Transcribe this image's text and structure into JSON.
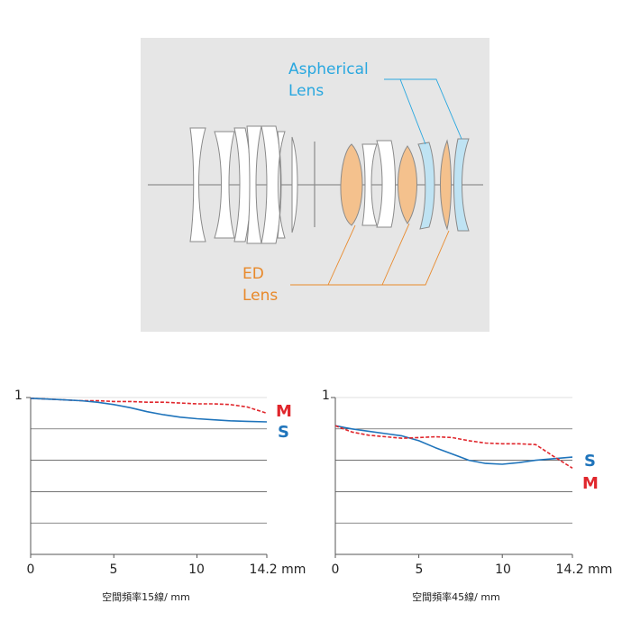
{
  "diagram": {
    "aspherical_label": [
      "Aspherical",
      "Lens"
    ],
    "ed_label": [
      "ED",
      "Lens"
    ],
    "colors": {
      "aspherical": "#29a7df",
      "ed": "#e8892b",
      "ed_fill": "#f4c18d",
      "asph_fill": "#bfe3f3",
      "panel": "#e6e6e6"
    }
  },
  "chart_data": [
    {
      "type": "line",
      "xlabel": "空間頻率15線/ mm",
      "x_ticks": [
        "0",
        "5",
        "10",
        "14.2 mm"
      ],
      "x_tick_values": [
        0,
        5,
        10,
        14.2
      ],
      "y_tick_label": "1",
      "xlim": [
        0,
        14.2
      ],
      "ylim": [
        0,
        1
      ],
      "grid_y": [
        0.2,
        0.4,
        0.6,
        0.8
      ],
      "series": [
        {
          "name": "M",
          "color": "#e0262c",
          "style": "dashed",
          "x": [
            0,
            1,
            2,
            3,
            4,
            5,
            6,
            7,
            8,
            9,
            10,
            11,
            12,
            13,
            14.2
          ],
          "y": [
            0.995,
            0.99,
            0.985,
            0.98,
            0.98,
            0.975,
            0.975,
            0.97,
            0.97,
            0.965,
            0.96,
            0.96,
            0.955,
            0.94,
            0.9
          ]
        },
        {
          "name": "S",
          "color": "#1f74bb",
          "style": "solid",
          "x": [
            0,
            1,
            2,
            3,
            4,
            5,
            6,
            7,
            8,
            9,
            10,
            11,
            12,
            13,
            14.2
          ],
          "y": [
            0.995,
            0.99,
            0.985,
            0.98,
            0.97,
            0.955,
            0.935,
            0.91,
            0.89,
            0.875,
            0.865,
            0.858,
            0.852,
            0.848,
            0.845
          ]
        }
      ]
    },
    {
      "type": "line",
      "xlabel": "空間頻率45線/ mm",
      "x_ticks": [
        "0",
        "5",
        "10",
        "14.2 mm"
      ],
      "x_tick_values": [
        0,
        5,
        10,
        14.2
      ],
      "y_tick_label": "1",
      "xlim": [
        0,
        14.2
      ],
      "ylim": [
        0,
        1
      ],
      "grid_y": [
        0.2,
        0.4,
        0.6,
        0.8
      ],
      "series": [
        {
          "name": "S",
          "color": "#1f74bb",
          "style": "solid",
          "x": [
            0,
            1,
            2,
            3,
            4,
            5,
            6,
            7,
            8,
            9,
            10,
            11,
            12,
            13,
            14.2
          ],
          "y": [
            0.82,
            0.8,
            0.785,
            0.77,
            0.755,
            0.725,
            0.68,
            0.64,
            0.6,
            0.58,
            0.575,
            0.585,
            0.6,
            0.61,
            0.62
          ]
        },
        {
          "name": "M",
          "color": "#e0262c",
          "style": "dashed",
          "x": [
            0,
            1,
            2,
            3,
            4,
            5,
            6,
            7,
            8,
            9,
            10,
            11,
            12,
            13,
            14.2
          ],
          "y": [
            0.82,
            0.78,
            0.76,
            0.75,
            0.74,
            0.745,
            0.75,
            0.745,
            0.725,
            0.71,
            0.705,
            0.705,
            0.7,
            0.63,
            0.55
          ]
        }
      ]
    }
  ]
}
